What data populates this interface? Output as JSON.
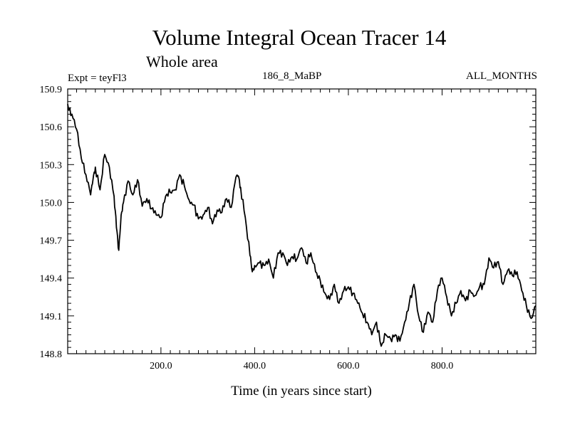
{
  "chart_data": {
    "type": "line",
    "title": "Volume Integral Ocean Tracer 14",
    "subtitle": "Whole area",
    "header_left": "Expt = teyFl3",
    "header_center": "186_8_MaBP",
    "header_right": "ALL_MONTHS",
    "xlabel": "Time (in years since start)",
    "ylabel": "",
    "xlim": [
      1,
      1000
    ],
    "ylim": [
      148.8,
      150.9
    ],
    "xticks": [
      200,
      400,
      600,
      800
    ],
    "xtick_labels": [
      "200.0",
      "400.0",
      "600.0",
      "800.0"
    ],
    "yticks": [
      148.8,
      149.1,
      149.4,
      149.7,
      150.0,
      150.3,
      150.6,
      150.9
    ],
    "ytick_labels": [
      "148.8",
      "149.1",
      "149.4",
      "149.7",
      "150.0",
      "150.3",
      "150.6",
      "150.9"
    ],
    "grid": false,
    "line_color": "#000000",
    "series": [
      {
        "name": "Tracer 14",
        "x": [
          1,
          10,
          20,
          30,
          40,
          50,
          55,
          60,
          70,
          80,
          90,
          100,
          105,
          110,
          115,
          120,
          130,
          140,
          150,
          160,
          170,
          180,
          190,
          200,
          210,
          220,
          230,
          240,
          250,
          260,
          270,
          280,
          290,
          300,
          310,
          320,
          330,
          340,
          350,
          360,
          365,
          370,
          380,
          390,
          395,
          400,
          410,
          420,
          430,
          440,
          450,
          460,
          470,
          480,
          490,
          500,
          510,
          520,
          530,
          540,
          550,
          560,
          570,
          580,
          590,
          600,
          610,
          620,
          630,
          640,
          650,
          660,
          670,
          680,
          690,
          700,
          710,
          720,
          730,
          740,
          750,
          760,
          770,
          780,
          790,
          800,
          810,
          820,
          830,
          840,
          850,
          860,
          870,
          880,
          890,
          900,
          910,
          920,
          930,
          940,
          950,
          960,
          970,
          980,
          990,
          1000
        ],
        "y": [
          150.78,
          150.7,
          150.58,
          150.35,
          150.22,
          150.06,
          150.18,
          150.28,
          150.1,
          150.38,
          150.28,
          150.05,
          149.8,
          149.62,
          149.9,
          150.0,
          150.17,
          150.06,
          150.18,
          149.97,
          150.03,
          149.95,
          149.9,
          149.88,
          150.05,
          150.08,
          150.1,
          150.22,
          150.13,
          150.02,
          149.98,
          149.87,
          149.9,
          149.96,
          149.83,
          149.94,
          149.92,
          150.03,
          149.96,
          150.2,
          150.21,
          150.12,
          149.88,
          149.58,
          149.45,
          149.5,
          149.52,
          149.5,
          149.55,
          149.4,
          149.6,
          149.6,
          149.5,
          149.57,
          149.55,
          149.64,
          149.52,
          149.6,
          149.45,
          149.38,
          149.28,
          149.23,
          149.35,
          149.2,
          149.3,
          149.33,
          149.28,
          149.2,
          149.12,
          149.05,
          148.95,
          149.05,
          148.86,
          148.95,
          148.92,
          148.95,
          148.9,
          149.05,
          149.2,
          149.35,
          149.1,
          148.97,
          149.13,
          149.05,
          149.3,
          149.4,
          149.25,
          149.1,
          149.2,
          149.3,
          149.22,
          149.3,
          149.26,
          149.33,
          149.35,
          149.56,
          149.48,
          149.53,
          149.35,
          149.46,
          149.42,
          149.45,
          149.3,
          149.18,
          149.08,
          149.18
        ]
      }
    ]
  }
}
